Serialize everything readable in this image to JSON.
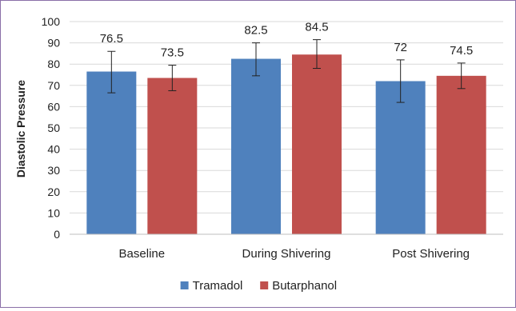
{
  "chart_data": {
    "type": "bar",
    "title": "",
    "xlabel": "",
    "ylabel": "Diastolic Pressure",
    "ylim": [
      0,
      100
    ],
    "ytick_step": 10,
    "grid": true,
    "legend_position": "bottom",
    "categories": [
      "Baseline",
      "During Shivering",
      "Post Shivering"
    ],
    "series": [
      {
        "name": "Tramadol",
        "color": "#4f81bd",
        "values": [
          76.5,
          82.5,
          72
        ],
        "labels": [
          "76.5",
          "82.5",
          "72"
        ],
        "error_low": [
          66.5,
          74.5,
          62
        ],
        "error_high": [
          86,
          90,
          82
        ]
      },
      {
        "name": "Butarphanol",
        "color": "#c0504d",
        "values": [
          73.5,
          84.5,
          74.5
        ],
        "labels": [
          "73.5",
          "84.5",
          "74.5"
        ],
        "error_low": [
          67.5,
          78,
          68.5
        ],
        "error_high": [
          79.5,
          91.5,
          80.5
        ]
      }
    ]
  }
}
